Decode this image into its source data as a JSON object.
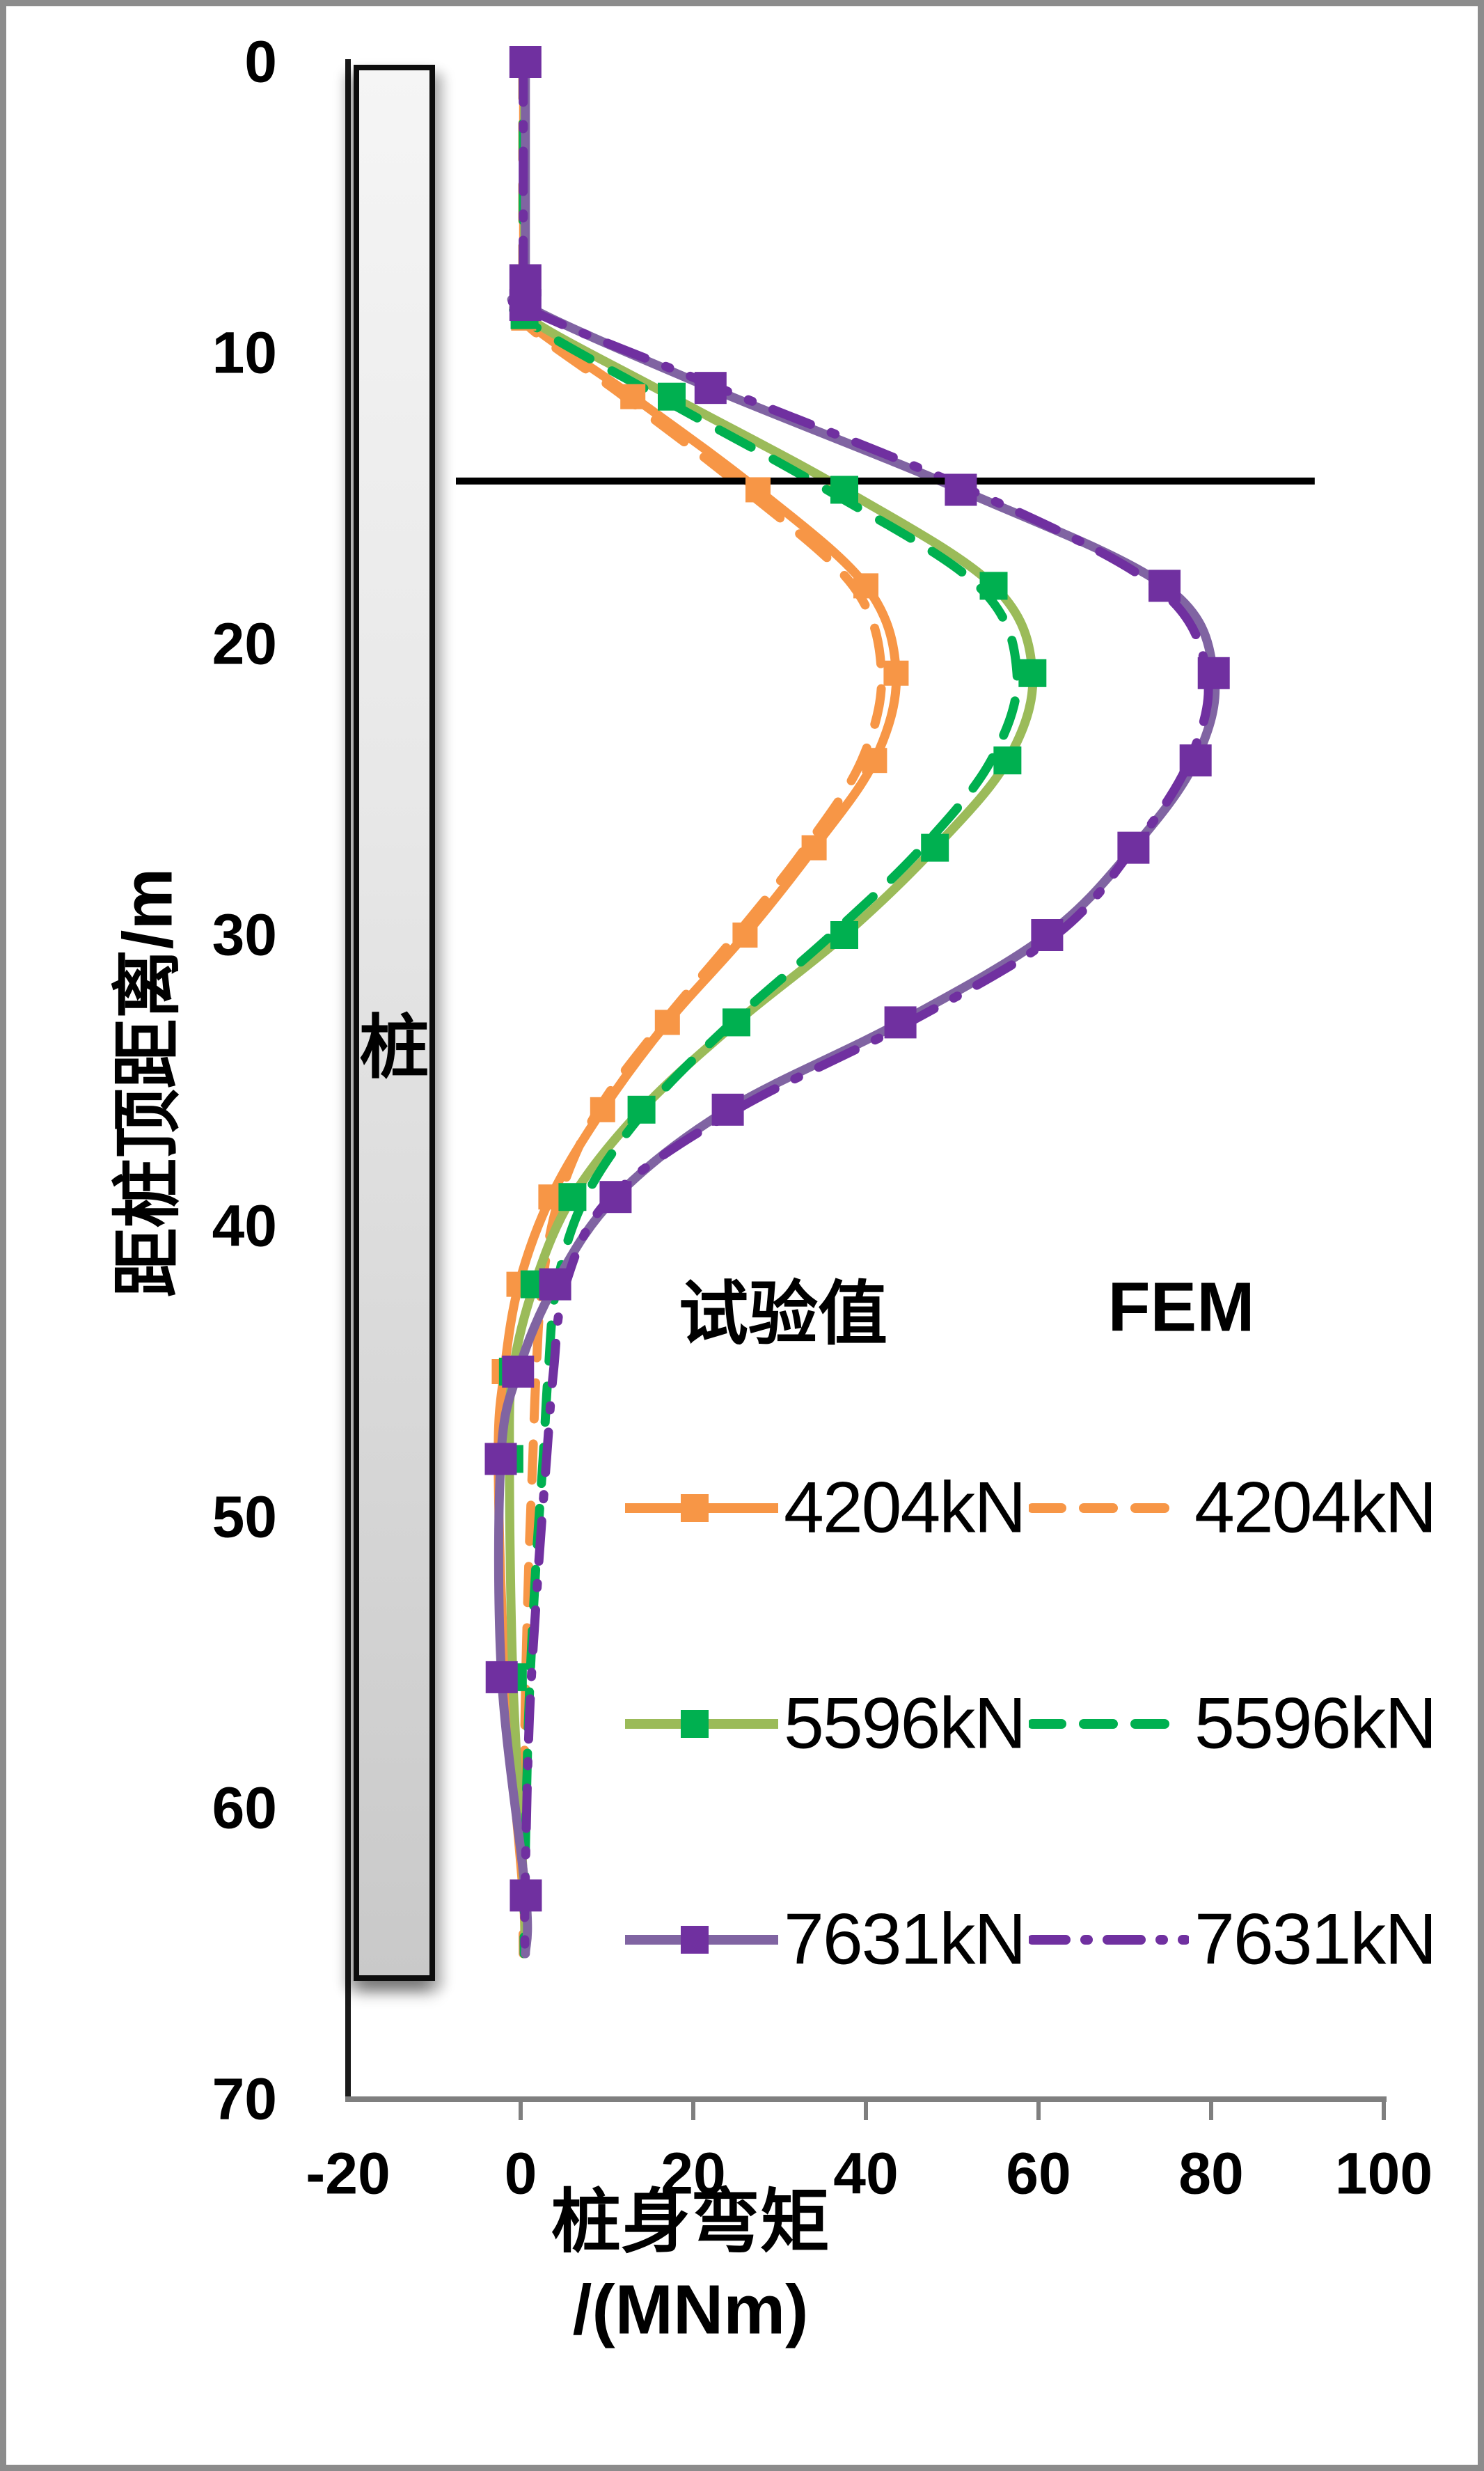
{
  "axes": {
    "y": {
      "title": "距桩顶距离/m",
      "ticks": [
        0,
        10,
        20,
        30,
        40,
        50,
        60,
        70
      ],
      "range": [
        0,
        70
      ]
    },
    "x": {
      "title_line1": "桩身弯矩",
      "title_line2": "/(MNm)",
      "ticks": [
        -20,
        0,
        20,
        40,
        60,
        80,
        100
      ],
      "range": [
        -20,
        100
      ]
    }
  },
  "pile": {
    "label": "桩"
  },
  "colors": {
    "orange": "#F79646",
    "olive_green": "#9BBB59",
    "bright_green": "#00B050",
    "purple_light": "#8064A2",
    "purple_dark": "#7030A0",
    "axis_gray": "#7F7F7F",
    "border_black": "#1a1a1a",
    "reference_line": "#000000"
  },
  "legend": {
    "col1_header": "试验值",
    "col2_header": "FEM",
    "rows": [
      {
        "test_label": "4204kN",
        "fem_label": "4204kN",
        "line_color": "#F79646",
        "marker_color": "#F79646",
        "fem_color": "#F79646",
        "fem_style": "dash"
      },
      {
        "test_label": "5596kN",
        "fem_label": "5596kN",
        "line_color": "#9BBB59",
        "marker_color": "#00B050",
        "fem_color": "#00B050",
        "fem_style": "dash"
      },
      {
        "test_label": "7631kN",
        "fem_label": "7631kN",
        "line_color": "#8064A2",
        "marker_color": "#7030A0",
        "fem_color": "#7030A0",
        "fem_style": "dashdot"
      }
    ]
  },
  "chart_data": {
    "type": "line",
    "xlabel": "桩身弯矩/(MNm)",
    "ylabel": "距桩顶距离/m",
    "x_range": [
      -20,
      100
    ],
    "depth_range": [
      0,
      70
    ],
    "grid": false,
    "reference_line": {
      "depth_m": 14.4,
      "x_extent": [
        -7.5,
        92
      ]
    },
    "series": [
      {
        "name": "试验值 4204kN",
        "group": "test",
        "load_kN": 4204,
        "color": "#F79646",
        "marker_color": "#F79646",
        "style": "solid",
        "points": [
          [
            0,
            0.35
          ],
          [
            7.6,
            0.35
          ],
          [
            8.8,
            0.35
          ],
          [
            11.5,
            13
          ],
          [
            14.7,
            27.5
          ],
          [
            18,
            40
          ],
          [
            21,
            43.5
          ],
          [
            24,
            41
          ],
          [
            27,
            34
          ],
          [
            30,
            26
          ],
          [
            33,
            17
          ],
          [
            36,
            9.5
          ],
          [
            39,
            3.5
          ],
          [
            42,
            -0.2
          ],
          [
            45,
            -1.9
          ],
          [
            48,
            -2.6
          ],
          [
            55.5,
            -1.8
          ],
          [
            63,
            0.3
          ],
          [
            65,
            0.35
          ]
        ],
        "markers": [
          [
            0,
            0.35
          ],
          [
            7.6,
            0.35
          ],
          [
            8.8,
            0.35
          ],
          [
            11.5,
            13
          ],
          [
            14.7,
            27.5
          ],
          [
            18,
            40
          ],
          [
            21,
            43.5
          ],
          [
            24,
            41
          ],
          [
            27,
            34
          ],
          [
            30,
            26
          ],
          [
            33,
            17
          ],
          [
            36,
            9.5
          ],
          [
            39,
            3.5
          ],
          [
            42,
            -0.2
          ],
          [
            45,
            -1.9
          ],
          [
            48,
            -2.6
          ],
          [
            55.5,
            -1.8
          ],
          [
            63,
            0.3
          ]
        ]
      },
      {
        "name": "FEM 4204kN",
        "group": "fem",
        "load_kN": 4204,
        "color": "#F79646",
        "style": "dash",
        "points": [
          [
            0,
            0.25
          ],
          [
            7.6,
            0.25
          ],
          [
            8.9,
            0.3
          ],
          [
            11.5,
            12
          ],
          [
            14.7,
            26
          ],
          [
            18,
            38.5
          ],
          [
            21,
            41.8
          ],
          [
            24,
            39.5
          ],
          [
            27,
            33
          ],
          [
            30,
            25
          ],
          [
            33,
            16.5
          ],
          [
            36,
            9
          ],
          [
            39,
            4.5
          ],
          [
            42,
            2.5
          ],
          [
            45,
            1.8
          ],
          [
            48,
            1.4
          ],
          [
            52,
            0.9
          ],
          [
            57,
            0.5
          ],
          [
            63,
            0.3
          ],
          [
            65,
            0.3
          ]
        ],
        "markers": []
      },
      {
        "name": "试验值 5596kN",
        "group": "test",
        "load_kN": 5596,
        "color": "#9BBB59",
        "marker_color": "#00B050",
        "style": "solid",
        "points": [
          [
            0,
            0.45
          ],
          [
            7.6,
            0.45
          ],
          [
            8.7,
            0.45
          ],
          [
            11.5,
            17.5
          ],
          [
            14.7,
            37.5
          ],
          [
            18,
            54.8
          ],
          [
            21,
            59.3
          ],
          [
            24,
            56.4
          ],
          [
            27,
            48
          ],
          [
            30,
            37.5
          ],
          [
            33,
            25
          ],
          [
            36,
            14
          ],
          [
            39,
            6
          ],
          [
            42,
            1.6
          ],
          [
            45,
            -0.9
          ],
          [
            48,
            -1.3
          ],
          [
            55.5,
            -0.9
          ],
          [
            63,
            0.4
          ],
          [
            65,
            0.4
          ]
        ],
        "markers": [
          [
            0,
            0.45
          ],
          [
            7.6,
            0.45
          ],
          [
            8.7,
            0.45
          ],
          [
            11.5,
            17.5
          ],
          [
            14.7,
            37.5
          ],
          [
            18,
            54.8
          ],
          [
            21,
            59.3
          ],
          [
            24,
            56.4
          ],
          [
            27,
            48
          ],
          [
            30,
            37.5
          ],
          [
            33,
            25
          ],
          [
            36,
            14
          ],
          [
            39,
            6
          ],
          [
            42,
            1.6
          ],
          [
            45,
            -0.9
          ],
          [
            48,
            -1.3
          ],
          [
            55.5,
            -0.9
          ],
          [
            63,
            0.4
          ]
        ]
      },
      {
        "name": "FEM 5596kN",
        "group": "fem",
        "load_kN": 5596,
        "color": "#00B050",
        "style": "dash",
        "points": [
          [
            0,
            0.3
          ],
          [
            7.6,
            0.3
          ],
          [
            8.8,
            0.35
          ],
          [
            11.5,
            16
          ],
          [
            14.7,
            35.5
          ],
          [
            18,
            53
          ],
          [
            21,
            57.5
          ],
          [
            24,
            54.5
          ],
          [
            27,
            46.5
          ],
          [
            30,
            36
          ],
          [
            33,
            24.5
          ],
          [
            36,
            14.5
          ],
          [
            39,
            7.5
          ],
          [
            42,
            4.2
          ],
          [
            45,
            3.2
          ],
          [
            48,
            2.6
          ],
          [
            52,
            1.7
          ],
          [
            57,
            0.9
          ],
          [
            63,
            0.45
          ],
          [
            65,
            0.4
          ]
        ],
        "markers": []
      },
      {
        "name": "试验值 7631kN",
        "group": "test",
        "load_kN": 7631,
        "color": "#8064A2",
        "marker_color": "#7030A0",
        "style": "solid",
        "points": [
          [
            0,
            0.55
          ],
          [
            7.5,
            0.55
          ],
          [
            8.35,
            0.55
          ],
          [
            11.2,
            22
          ],
          [
            14.7,
            51
          ],
          [
            18,
            74.6
          ],
          [
            21,
            80.3
          ],
          [
            24,
            78.2
          ],
          [
            27,
            71
          ],
          [
            30,
            61
          ],
          [
            33,
            44
          ],
          [
            36,
            24
          ],
          [
            39,
            11
          ],
          [
            42,
            4
          ],
          [
            45,
            -0.3
          ],
          [
            48,
            -2.3
          ],
          [
            55.5,
            -2.2
          ],
          [
            63,
            0.6
          ],
          [
            65,
            0.55
          ]
        ],
        "markers": [
          [
            0,
            0.55
          ],
          [
            7.5,
            0.55
          ],
          [
            8.35,
            0.55
          ],
          [
            11.2,
            22
          ],
          [
            14.7,
            51
          ],
          [
            18,
            74.6
          ],
          [
            21,
            80.3
          ],
          [
            24,
            78.2
          ],
          [
            27,
            71
          ],
          [
            30,
            61
          ],
          [
            33,
            44
          ],
          [
            36,
            24
          ],
          [
            39,
            11
          ],
          [
            42,
            4
          ],
          [
            45,
            -0.3
          ],
          [
            48,
            -2.3
          ],
          [
            55.5,
            -2.2
          ],
          [
            63,
            0.6
          ]
        ]
      },
      {
        "name": "FEM 7631kN",
        "group": "fem",
        "load_kN": 7631,
        "color": "#7030A0",
        "style": "dashdot",
        "points": [
          [
            0,
            0.3
          ],
          [
            7.5,
            0.3
          ],
          [
            8.4,
            0.35
          ],
          [
            11.2,
            23
          ],
          [
            14.7,
            52
          ],
          [
            18,
            73.5
          ],
          [
            21,
            79.5
          ],
          [
            24,
            77.5
          ],
          [
            27,
            71
          ],
          [
            30,
            62
          ],
          [
            33,
            45
          ],
          [
            36,
            25
          ],
          [
            39,
            10.5
          ],
          [
            42,
            5.2
          ],
          [
            45,
            3.8
          ],
          [
            48,
            3
          ],
          [
            52,
            2
          ],
          [
            57,
            1
          ],
          [
            63,
            0.5
          ],
          [
            65,
            0.5
          ]
        ],
        "markers": []
      }
    ]
  }
}
